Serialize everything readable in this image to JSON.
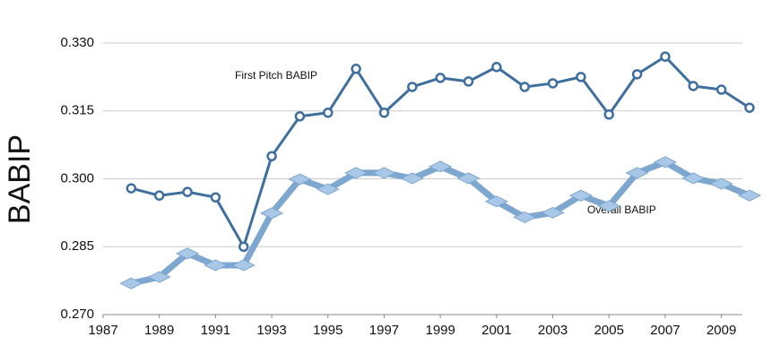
{
  "chart_data": {
    "type": "line",
    "y_label": "BABIP",
    "annotations": [
      "First Pitch BABIP",
      "Overall BABIP"
    ],
    "x": [
      1988,
      1989,
      1990,
      1991,
      1992,
      1993,
      1994,
      1995,
      1996,
      1997,
      1998,
      1999,
      2000,
      2001,
      2002,
      2003,
      2004,
      2005,
      2006,
      2007,
      2008,
      2009,
      2010
    ],
    "series": [
      {
        "name": "First Pitch BABIP",
        "color": "#3f6f9f",
        "values": [
          0.2979,
          0.2963,
          0.2971,
          0.2959,
          0.285,
          0.305,
          0.3138,
          0.3146,
          0.3243,
          0.3146,
          0.3203,
          0.3223,
          0.3215,
          0.3247,
          0.3203,
          0.3211,
          0.3225,
          0.3142,
          0.3231,
          0.327,
          0.3205,
          0.3197,
          0.3157
        ]
      },
      {
        "name": "Overall BABIP",
        "color": "#7ea7cf",
        "values": [
          0.2769,
          0.2783,
          0.2835,
          0.2809,
          0.2809,
          0.2924,
          0.2999,
          0.2977,
          0.3013,
          0.3013,
          0.3001,
          0.3027,
          0.3001,
          0.295,
          0.2915,
          0.2925,
          0.2963,
          0.294,
          0.3013,
          0.3037,
          0.3001,
          0.2989,
          0.2963
        ]
      }
    ],
    "xlim": [
      1987,
      2010
    ],
    "xticks": [
      1987,
      1989,
      1991,
      1993,
      1995,
      1997,
      1999,
      2001,
      2003,
      2005,
      2007,
      2009
    ],
    "ylim": [
      0.27,
      0.33
    ],
    "yticks": [
      {
        "value": 0.27,
        "label": "0.270"
      },
      {
        "value": 0.285,
        "label": "0.285"
      },
      {
        "value": 0.3,
        "label": "0.300"
      },
      {
        "value": 0.315,
        "label": "0.315"
      },
      {
        "value": 0.33,
        "label": "0.330"
      }
    ],
    "grid": true
  }
}
